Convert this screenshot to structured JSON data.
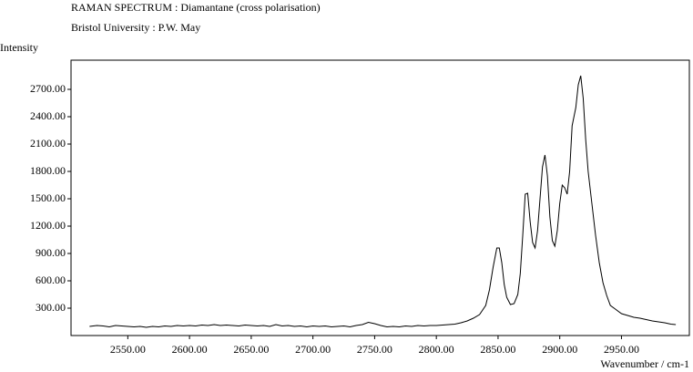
{
  "chart_data": {
    "type": "line",
    "title": "RAMAN SPECTRUM : Diamantane (cross polarisation)",
    "subtitle": "Bristol University : P.W. May",
    "y_label": "Intensity",
    "x_label": "Wavenumber / cm-1",
    "xlim": [
      2504,
      3005
    ],
    "ylim": [
      0,
      3020
    ],
    "xticks": [
      {
        "value": 2550,
        "label": "2550.00"
      },
      {
        "value": 2600,
        "label": "2600.00"
      },
      {
        "value": 2650,
        "label": "2650.00"
      },
      {
        "value": 2700,
        "label": "2700.00"
      },
      {
        "value": 2750,
        "label": "2750.00"
      },
      {
        "value": 2800,
        "label": "2800.00"
      },
      {
        "value": 2850,
        "label": "2850.00"
      },
      {
        "value": 2900,
        "label": "2900.00"
      },
      {
        "value": 2950,
        "label": "2950.00"
      }
    ],
    "yticks": [
      {
        "value": 300,
        "label": "300.00"
      },
      {
        "value": 600,
        "label": "600.00"
      },
      {
        "value": 900,
        "label": "900.00"
      },
      {
        "value": 1200,
        "label": "1200.00"
      },
      {
        "value": 1500,
        "label": "1500.00"
      },
      {
        "value": 1800,
        "label": "1800.00"
      },
      {
        "value": 2100,
        "label": "2100.00"
      },
      {
        "value": 2400,
        "label": "2400.00"
      },
      {
        "value": 2700,
        "label": "2700.00"
      }
    ],
    "grid": false,
    "color": "#000000",
    "x": [
      2519,
      2525,
      2530,
      2535,
      2540,
      2545,
      2550,
      2555,
      2560,
      2565,
      2570,
      2575,
      2580,
      2585,
      2590,
      2595,
      2600,
      2605,
      2610,
      2615,
      2620,
      2625,
      2630,
      2635,
      2640,
      2645,
      2650,
      2655,
      2660,
      2665,
      2670,
      2675,
      2680,
      2685,
      2690,
      2695,
      2700,
      2705,
      2710,
      2715,
      2720,
      2725,
      2730,
      2735,
      2740,
      2745,
      2750,
      2755,
      2760,
      2765,
      2770,
      2775,
      2780,
      2785,
      2790,
      2795,
      2800,
      2805,
      2810,
      2815,
      2820,
      2825,
      2830,
      2835,
      2840,
      2843,
      2846,
      2849,
      2851,
      2853,
      2855,
      2857,
      2860,
      2863,
      2866,
      2868,
      2870,
      2872,
      2874,
      2876,
      2878,
      2880,
      2882,
      2884,
      2886,
      2888,
      2890,
      2892,
      2894,
      2896,
      2898,
      2900,
      2902,
      2904,
      2906,
      2908,
      2910,
      2913,
      2915,
      2917,
      2919,
      2921,
      2923,
      2926,
      2929,
      2932,
      2935,
      2938,
      2941,
      2945,
      2950,
      2955,
      2960,
      2965,
      2970,
      2975,
      2980,
      2985,
      2990,
      2994
    ],
    "values": [
      100,
      110,
      105,
      95,
      110,
      105,
      100,
      95,
      100,
      90,
      100,
      95,
      105,
      100,
      110,
      105,
      110,
      105,
      115,
      110,
      120,
      110,
      115,
      110,
      105,
      115,
      110,
      105,
      110,
      100,
      120,
      105,
      110,
      100,
      105,
      95,
      105,
      100,
      105,
      95,
      100,
      105,
      95,
      110,
      120,
      145,
      130,
      110,
      95,
      100,
      95,
      105,
      100,
      110,
      105,
      110,
      110,
      115,
      120,
      125,
      140,
      160,
      190,
      230,
      330,
      500,
      750,
      960,
      960,
      800,
      560,
      420,
      340,
      350,
      450,
      680,
      1100,
      1550,
      1560,
      1250,
      1020,
      960,
      1150,
      1500,
      1850,
      1980,
      1750,
      1300,
      1040,
      980,
      1150,
      1450,
      1650,
      1620,
      1550,
      1800,
      2300,
      2500,
      2750,
      2850,
      2600,
      2150,
      1800,
      1450,
      1100,
      800,
      580,
      440,
      330,
      290,
      240,
      220,
      200,
      190,
      175,
      160,
      150,
      140,
      125,
      120
    ]
  }
}
